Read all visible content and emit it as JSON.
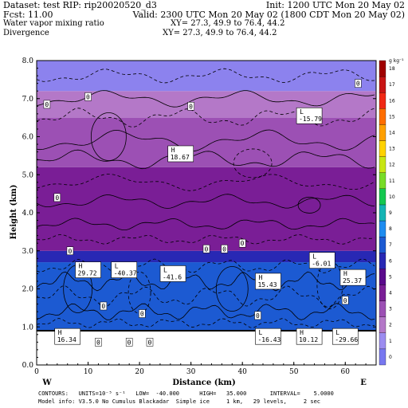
{
  "header": {
    "dataset": "Dataset: test   RIP: rip20020520_d3",
    "init": "Init: 1200 UTC Mon 20 May 02",
    "fcst": "Fcst:     11.00",
    "valid": "Valid: 2300 UTC Mon 20 May 02 (1800 CDT Mon 20 May 02)",
    "field1": "Water vapor mixing ratio",
    "xy1": "XY=   27.3, 49.9 to   76.4, 44.2",
    "field2": "Divergence",
    "xy2": "XY=   27.3, 49.9 to   76.4, 44.2"
  },
  "footer": {
    "line1": "CONTOURS:   UNITS=10⁻⁵ s⁻¹   LOW=  -40.000      HIGH=   35.000       INTERVAL=    5.0000",
    "line2": "Model info: V3.5.0 No Cumulus Blackadar  Simple ice     1 km,   29 levels,     2 sec"
  },
  "chart_data": {
    "type": "heatmap",
    "xlabel": "Distance (km)",
    "ylabel": "Height (km)",
    "xlim": [
      0,
      66
    ],
    "ylim": [
      0,
      8
    ],
    "x_ticks": [
      0,
      10,
      20,
      30,
      40,
      50,
      60
    ],
    "y_ticks": [
      "0.0",
      "1.0",
      "2.0",
      "3.0",
      "4.0",
      "5.0",
      "6.0",
      "7.0",
      "8.0"
    ],
    "x_end_labels": [
      "W",
      "E"
    ],
    "filled_field": "Water vapor mixing ratio",
    "filled_bands": [
      {
        "y0": 0.0,
        "y1": 0.9,
        "color": "#ffffff"
      },
      {
        "y0": 0.9,
        "y1": 2.7,
        "color": "#1c5ad2"
      },
      {
        "y0": 2.7,
        "y1": 3.0,
        "color": "#2828b4"
      },
      {
        "y0": 3.0,
        "y1": 5.2,
        "color": "#7a1e96"
      },
      {
        "y0": 5.2,
        "y1": 6.5,
        "color": "#9c50b4"
      },
      {
        "y0": 6.5,
        "y1": 7.2,
        "color": "#b478c8"
      },
      {
        "y0": 7.2,
        "y1": 8.0,
        "color": "#8c82ee"
      }
    ],
    "colorbar": {
      "unit": "g kg⁻¹",
      "levels": [
        "0",
        "1",
        "2",
        "3",
        "4",
        "5",
        "6",
        "7",
        "8",
        "9",
        "10",
        "11",
        "12",
        "13",
        "14",
        "15",
        "16",
        "17",
        "18"
      ],
      "colors": [
        "#7878f0",
        "#9c8cf0",
        "#b478c8",
        "#9c50b4",
        "#7a1e96",
        "#5a0a8c",
        "#2828b4",
        "#1c5ad2",
        "#1e8cf0",
        "#14b4b4",
        "#14c850",
        "#78dc28",
        "#c8e614",
        "#ffd200",
        "#ffa000",
        "#ff6e00",
        "#f02814",
        "#c81414",
        "#a00000"
      ]
    },
    "contour_labels": [
      {
        "text": "H",
        "value": "18.67",
        "x": 28.0,
        "y": 5.55
      },
      {
        "text": "L",
        "value": "-15.79",
        "x": 53.0,
        "y": 6.55
      },
      {
        "text": "H",
        "value": "29.72",
        "x": 10.0,
        "y": 2.5
      },
      {
        "text": "L",
        "value": "-40.37",
        "x": 17.0,
        "y": 2.5
      },
      {
        "text": "L",
        "value": "-41.6",
        "x": 26.5,
        "y": 2.4
      },
      {
        "text": "L",
        "value": "-6.01",
        "x": 55.5,
        "y": 2.75
      },
      {
        "text": "H",
        "value": "15.43",
        "x": 45.0,
        "y": 2.2
      },
      {
        "text": "H",
        "value": "25.37",
        "x": 61.5,
        "y": 2.3
      },
      {
        "text": "H",
        "value": "16.34",
        "x": 6.0,
        "y": 0.75
      },
      {
        "text": "L",
        "value": "-16.43",
        "x": 45.0,
        "y": 0.75
      },
      {
        "text": "H",
        "value": "10.12",
        "x": 53.0,
        "y": 0.75
      },
      {
        "text": "L",
        "value": "-29.66",
        "x": 60.0,
        "y": 0.75
      }
    ],
    "zero_labels": [
      {
        "text": "0",
        "x": 2.0,
        "y": 6.85
      },
      {
        "text": "0",
        "x": 10.0,
        "y": 7.05
      },
      {
        "text": "0",
        "x": 30.0,
        "y": 6.8
      },
      {
        "text": "0",
        "x": 4.0,
        "y": 4.4
      },
      {
        "text": "0",
        "x": 33.0,
        "y": 3.05
      },
      {
        "text": "0",
        "x": 36.5,
        "y": 3.05
      },
      {
        "text": "0",
        "x": 40.0,
        "y": 3.2
      },
      {
        "text": "0",
        "x": 6.5,
        "y": 3.0
      },
      {
        "text": "0",
        "x": 13.0,
        "y": 1.55
      },
      {
        "text": "0",
        "x": 43.0,
        "y": 1.3
      },
      {
        "text": "0",
        "x": 60.0,
        "y": 1.7
      },
      {
        "text": "0",
        "x": 12.0,
        "y": 0.6
      },
      {
        "text": "0",
        "x": 18.0,
        "y": 0.6
      },
      {
        "text": "0",
        "x": 22.0,
        "y": 0.6
      },
      {
        "text": "0",
        "x": 62.5,
        "y": 7.4
      },
      {
        "text": "0",
        "x": 20.5,
        "y": 1.35
      }
    ]
  }
}
